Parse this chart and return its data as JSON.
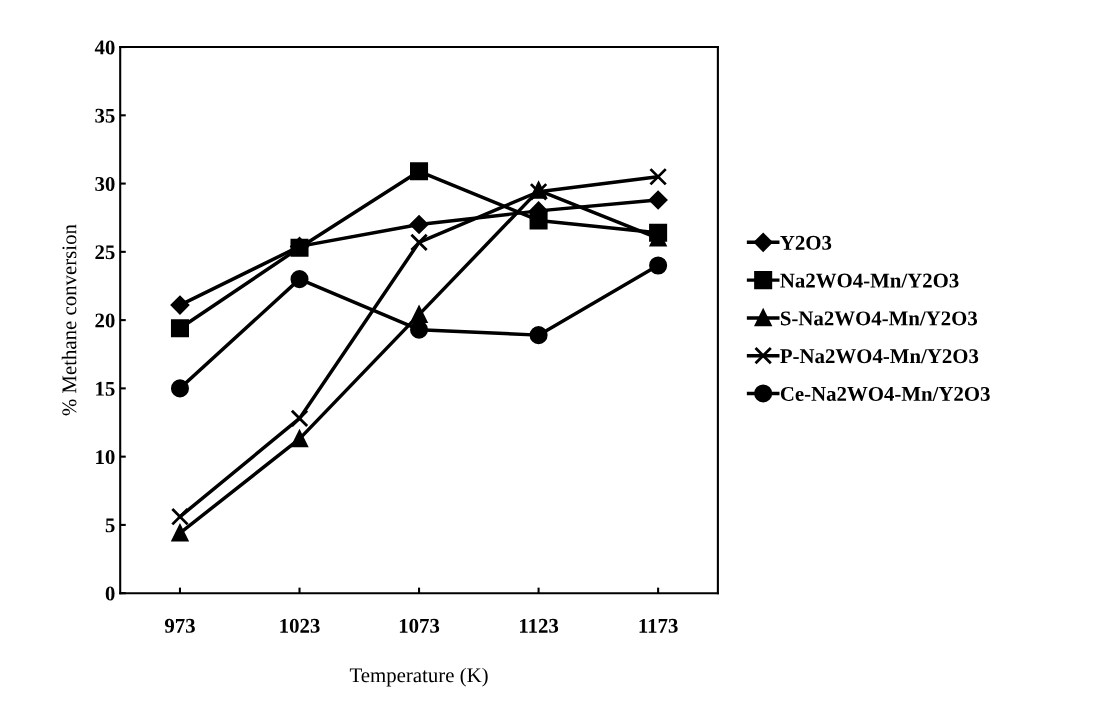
{
  "chart_data": {
    "type": "line",
    "xlabel": "Temperature (K)",
    "ylabel": "% Methane conversion",
    "categories": [
      "973",
      "1023",
      "1073",
      "1123",
      "1173"
    ],
    "ylim": [
      0,
      40
    ],
    "yticks": [
      0,
      5,
      10,
      15,
      20,
      25,
      30,
      35,
      40
    ],
    "grid": false,
    "legend": "right",
    "line_style": "solid",
    "series": [
      {
        "name": "Y2O3",
        "color": "#000000",
        "marker": "diamond",
        "values": [
          21.1,
          25.4,
          27.0,
          28.0,
          28.8
        ]
      },
      {
        "name": "Na2WO4-Mn/Y2O3",
        "color": "#000000",
        "marker": "square",
        "values": [
          19.4,
          25.3,
          30.9,
          27.3,
          26.4
        ]
      },
      {
        "name": "S-Na2WO4-Mn/Y2O3",
        "color": "#000000",
        "marker": "triangle",
        "values": [
          4.4,
          11.3,
          20.4,
          29.5,
          26.0
        ]
      },
      {
        "name": "P-Na2WO4-Mn/Y2O3",
        "color": "#000000",
        "marker": "cross",
        "values": [
          5.6,
          12.8,
          25.7,
          29.4,
          30.5
        ]
      },
      {
        "name": "Ce-Na2WO4-Mn/Y2O3",
        "color": "#000000",
        "marker": "circle",
        "values": [
          15.0,
          23.0,
          19.3,
          18.9,
          24.0
        ]
      }
    ]
  }
}
